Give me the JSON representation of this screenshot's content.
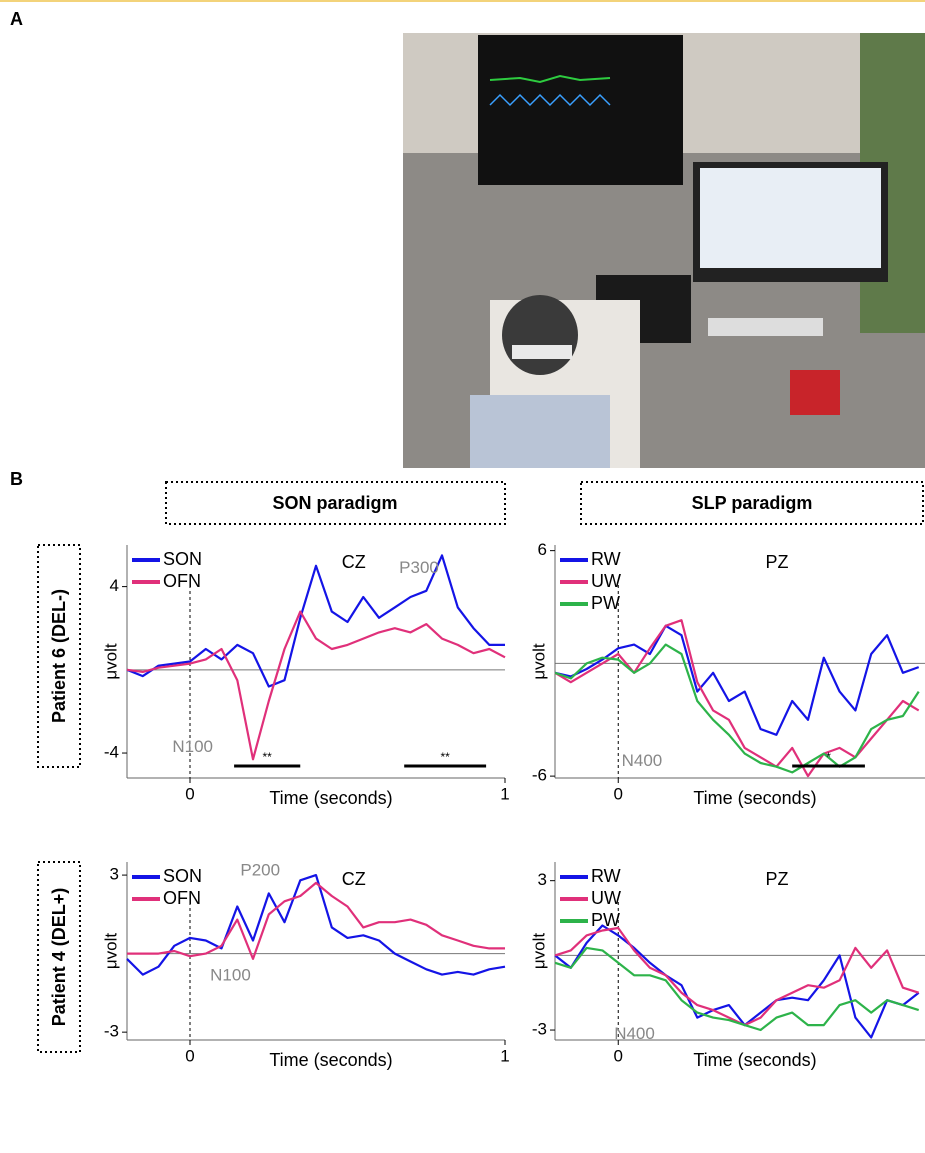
{
  "panel_a": {
    "label": "A"
  },
  "panel_b": {
    "label": "B",
    "columns": [
      "SON paradigm",
      "SLP paradigm"
    ],
    "rows": [
      "Patient 6 (DEL-)",
      "Patient 4 (DEL+)"
    ]
  },
  "chart_data": [
    {
      "type": "line",
      "title": "CZ",
      "x_label": "Time (seconds)",
      "y_label": "μvolt",
      "x": [
        -0.2,
        -0.15,
        -0.1,
        -0.05,
        0,
        0.05,
        0.1,
        0.15,
        0.2,
        0.25,
        0.3,
        0.35,
        0.4,
        0.45,
        0.5,
        0.55,
        0.6,
        0.65,
        0.7,
        0.75,
        0.8,
        0.85,
        0.9,
        0.95,
        1.0
      ],
      "series": [
        {
          "name": "SON",
          "color": "#1414e6",
          "values": [
            0,
            -0.3,
            0.2,
            0.3,
            0.4,
            1.0,
            0.5,
            1.2,
            0.8,
            -0.8,
            -0.5,
            2.5,
            5.0,
            2.8,
            2.3,
            3.5,
            2.5,
            3.0,
            3.5,
            3.8,
            5.5,
            3.0,
            2.0,
            1.2,
            1.2
          ]
        },
        {
          "name": "OFN",
          "color": "#e0307a",
          "values": [
            0,
            -0.1,
            0.1,
            0.2,
            0.3,
            0.5,
            1.0,
            -0.5,
            -4.3,
            -1.5,
            1.0,
            2.8,
            1.5,
            1.0,
            1.2,
            1.5,
            1.8,
            2.0,
            1.8,
            2.2,
            1.5,
            1.2,
            0.8,
            1.0,
            0.6
          ]
        }
      ],
      "xlim": [
        -0.2,
        1.0
      ],
      "xticks": [
        0,
        1
      ],
      "ylim": [
        -5.2,
        6
      ],
      "yticks": [
        -4,
        4
      ],
      "legend": "upper left",
      "annotations": [
        "N100",
        "P300"
      ],
      "sig": [
        {
          "start": 0.14,
          "end": 0.35,
          "label": "**"
        },
        {
          "start": 0.68,
          "end": 0.94,
          "label": "**"
        }
      ]
    },
    {
      "type": "line",
      "title": "PZ",
      "x_label": "Time (seconds)",
      "y_label": "μvolt",
      "x": [
        -0.2,
        -0.15,
        -0.1,
        -0.05,
        0,
        0.05,
        0.1,
        0.15,
        0.2,
        0.25,
        0.3,
        0.35,
        0.4,
        0.45,
        0.5,
        0.55,
        0.6,
        0.65,
        0.7,
        0.75,
        0.8,
        0.85,
        0.9,
        0.95
      ],
      "series": [
        {
          "name": "RW",
          "color": "#1414e6",
          "values": [
            -0.5,
            -0.7,
            -0.3,
            0.2,
            0.8,
            1.0,
            0.5,
            2.0,
            1.5,
            -1.5,
            -0.5,
            -2.0,
            -1.5,
            -3.5,
            -3.8,
            -2.0,
            -3.0,
            0.3,
            -1.5,
            -2.5,
            0.5,
            1.5,
            -0.5,
            -0.2
          ]
        },
        {
          "name": "UW",
          "color": "#e0307a",
          "values": [
            -0.5,
            -1.0,
            -0.5,
            0.0,
            0.5,
            -0.5,
            0.8,
            2.0,
            2.3,
            -1.0,
            -2.5,
            -3.0,
            -4.5,
            -5.0,
            -5.5,
            -4.5,
            -6.0,
            -4.8,
            -4.5,
            -5.0,
            -4.0,
            -3.0,
            -2.0,
            -2.5
          ]
        },
        {
          "name": "PW",
          "color": "#2db34a",
          "values": [
            -0.5,
            -0.8,
            0.0,
            0.3,
            0.2,
            -0.5,
            0.0,
            1.0,
            0.5,
            -2.0,
            -3.0,
            -3.8,
            -4.8,
            -5.3,
            -5.5,
            -5.8,
            -5.3,
            -4.8,
            -5.5,
            -5.0,
            -3.5,
            -3.0,
            -2.8,
            -1.5
          ]
        }
      ],
      "xlim": [
        -0.2,
        0.97
      ],
      "xticks": [
        0
      ],
      "ylim": [
        -6.1,
        6.3
      ],
      "yticks": [
        -6,
        6
      ],
      "legend": "upper left",
      "annotations": [
        "N400"
      ],
      "sig": [
        {
          "start": 0.55,
          "end": 0.78,
          "label": "*"
        }
      ]
    },
    {
      "type": "line",
      "title": "CZ",
      "x_label": "Time (seconds)",
      "y_label": "μvolt",
      "x": [
        -0.2,
        -0.15,
        -0.1,
        -0.05,
        0,
        0.05,
        0.1,
        0.15,
        0.2,
        0.25,
        0.3,
        0.35,
        0.4,
        0.45,
        0.5,
        0.55,
        0.6,
        0.65,
        0.7,
        0.75,
        0.8,
        0.85,
        0.9,
        0.95,
        1.0
      ],
      "series": [
        {
          "name": "SON",
          "color": "#1414e6",
          "values": [
            -0.2,
            -0.8,
            -0.5,
            0.3,
            0.6,
            0.5,
            0.2,
            1.8,
            0.5,
            2.3,
            1.2,
            2.8,
            3.0,
            1.0,
            0.6,
            0.7,
            0.5,
            0.0,
            -0.3,
            -0.6,
            -0.8,
            -0.7,
            -0.8,
            -0.6,
            -0.5
          ]
        },
        {
          "name": "OFN",
          "color": "#e0307a",
          "values": [
            0,
            0,
            0,
            0.1,
            -0.1,
            0.0,
            0.3,
            1.3,
            -0.2,
            1.5,
            2.0,
            2.2,
            2.7,
            2.2,
            1.8,
            1.0,
            1.2,
            1.2,
            1.3,
            1.1,
            0.7,
            0.5,
            0.3,
            0.2,
            0.2
          ]
        }
      ],
      "xlim": [
        -0.2,
        1.0
      ],
      "xticks": [
        0,
        1
      ],
      "ylim": [
        -3.3,
        3.5
      ],
      "yticks": [
        -3,
        3
      ],
      "legend": "upper left",
      "annotations": [
        "P200",
        "N100"
      ]
    },
    {
      "type": "line",
      "title": "PZ",
      "x_label": "Time (seconds)",
      "y_label": "μvolt",
      "x": [
        -0.2,
        -0.15,
        -0.1,
        -0.05,
        0,
        0.05,
        0.1,
        0.15,
        0.2,
        0.25,
        0.3,
        0.35,
        0.4,
        0.45,
        0.5,
        0.55,
        0.6,
        0.65,
        0.7,
        0.75,
        0.8,
        0.85,
        0.9,
        0.95
      ],
      "series": [
        {
          "name": "RW",
          "color": "#1414e6",
          "values": [
            0,
            -0.5,
            0.5,
            1.2,
            0.8,
            0.3,
            -0.3,
            -0.8,
            -1.2,
            -2.5,
            -2.2,
            -2.0,
            -2.8,
            -2.3,
            -1.8,
            -1.7,
            -1.8,
            -1.0,
            0.0,
            -2.5,
            -3.3,
            -1.8,
            -2.0,
            -1.5
          ]
        },
        {
          "name": "UW",
          "color": "#e0307a",
          "values": [
            0,
            0.2,
            0.8,
            1.0,
            1.1,
            0.2,
            -0.5,
            -0.8,
            -1.5,
            -2.0,
            -2.2,
            -2.5,
            -2.8,
            -2.5,
            -1.8,
            -1.5,
            -1.2,
            -1.3,
            -1.0,
            0.3,
            -0.5,
            0.2,
            -1.3,
            -1.5
          ]
        },
        {
          "name": "PW",
          "color": "#2db34a",
          "values": [
            -0.3,
            -0.5,
            0.3,
            0.2,
            -0.3,
            -0.8,
            -0.8,
            -1.0,
            -1.8,
            -2.3,
            -2.5,
            -2.6,
            -2.8,
            -3.0,
            -2.5,
            -2.3,
            -2.8,
            -2.8,
            -2.0,
            -1.8,
            -2.3,
            -1.8,
            -2.0,
            -2.2
          ]
        }
      ],
      "xlim": [
        -0.2,
        0.97
      ],
      "xticks": [
        0
      ],
      "ylim": [
        -3.4,
        3.75
      ],
      "yticks": [
        -3,
        3
      ],
      "legend": "upper left",
      "annotations": [
        "N400"
      ]
    }
  ]
}
